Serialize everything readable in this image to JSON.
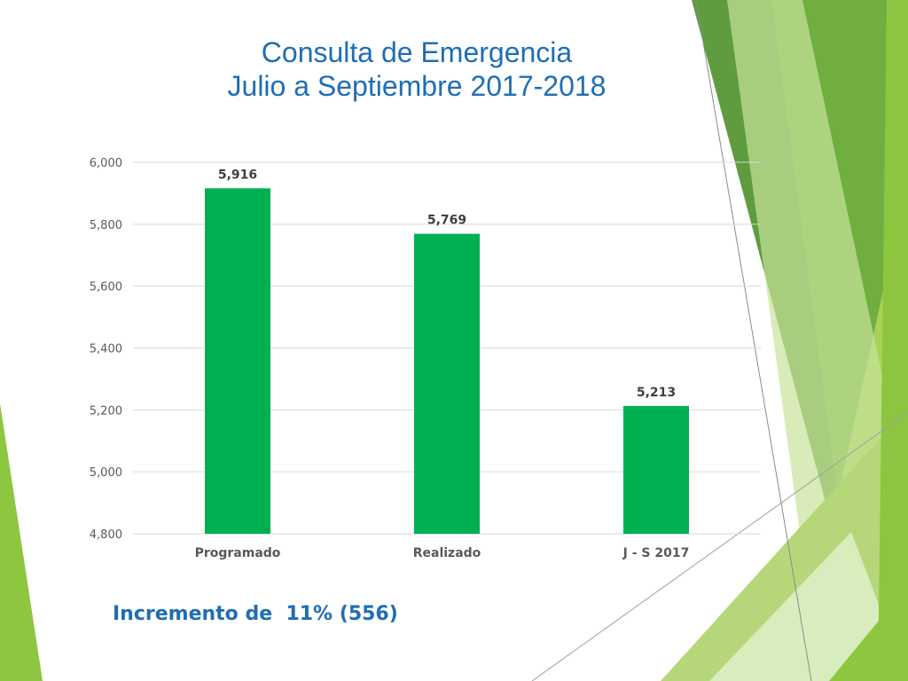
{
  "slide": {
    "title_line1": "Consulta de Emergencia",
    "title_line2": "Julio a Septiembre 2017-2018",
    "footnote": "Incremento de  11% (556)"
  },
  "colors": {
    "bar": "#00b050",
    "title": "#1f6eb3",
    "grid": "#d9d9d9",
    "axis_text": "#595959",
    "deco_light": "#8dc63f",
    "deco_dark": "#5a9a3b"
  },
  "chart_data": {
    "type": "bar",
    "categories": [
      "Programado",
      "Realizado",
      "J - S 2017"
    ],
    "values": [
      5916,
      5769,
      5213
    ],
    "value_labels": [
      "5,916",
      "5,769",
      "5,213"
    ],
    "ylim": [
      4800,
      6000
    ],
    "yticks": [
      4800,
      5000,
      5200,
      5400,
      5600,
      5800,
      6000
    ],
    "ytick_labels": [
      "4,800",
      "5,000",
      "5,200",
      "5,400",
      "5,600",
      "5,800",
      "6,000"
    ],
    "grid": true,
    "legend": "none"
  }
}
